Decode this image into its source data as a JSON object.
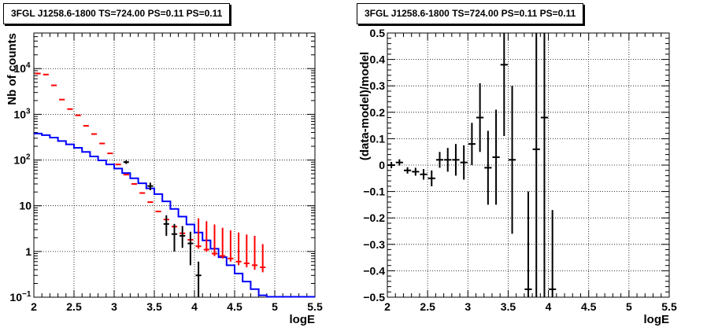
{
  "chart_data": [
    {
      "type": "step",
      "title": "3FGL J1258.6-1800 TS=724.00 PS=0.11 PS=0.11",
      "xlabel": "logE",
      "ylabel": "Nb of counts",
      "xlim": [
        2,
        5.5
      ],
      "ylim": [
        0.1,
        60000
      ],
      "ylog": true,
      "grid": true,
      "x_ticks": [
        "2",
        "2.5",
        "3",
        "3.5",
        "4",
        "4.5",
        "5",
        "5.5"
      ],
      "y_ticks": [
        {
          "value": 0.1,
          "label": "10",
          "exp": "−1"
        },
        {
          "value": 1,
          "label": "1",
          "exp": ""
        },
        {
          "value": 10,
          "label": "10",
          "exp": ""
        },
        {
          "value": 100,
          "label": "10",
          "exp": "2"
        },
        {
          "value": 1000,
          "label": "10",
          "exp": "3"
        },
        {
          "value": 10000,
          "label": "10",
          "exp": "4"
        }
      ],
      "bin_edges": [
        2.0,
        2.1,
        2.2,
        2.3,
        2.4,
        2.5,
        2.6,
        2.7,
        2.8,
        2.9,
        3.0,
        3.1,
        3.2,
        3.3,
        3.4,
        3.5,
        3.6,
        3.7,
        3.8,
        3.9,
        4.0,
        4.1,
        4.2,
        4.3,
        4.4,
        4.5,
        4.6,
        4.7,
        4.8,
        4.9,
        5.0,
        5.1,
        5.2,
        5.3,
        5.4,
        5.5
      ],
      "series": [
        {
          "color": "#0000ff",
          "kind": "histogram",
          "values": [
            380,
            350,
            310,
            260,
            220,
            185,
            150,
            120,
            98,
            80,
            65,
            52,
            40,
            31,
            24,
            18,
            12.5,
            8.5,
            5.8,
            3.9,
            2.6,
            1.75,
            1.15,
            0.75,
            0.5,
            0.33,
            0.22,
            0.15,
            0.11,
            0.1,
            0.1,
            0.1,
            0.1,
            0.1,
            0.1
          ]
        },
        {
          "color": "#ff0000",
          "kind": "points",
          "x": [
            2.05,
            2.15,
            2.25,
            2.35,
            2.45,
            2.55,
            2.65,
            2.75,
            2.85,
            2.95,
            3.05,
            3.15,
            3.25,
            3.35,
            3.45,
            3.55,
            3.65,
            3.75,
            3.85,
            3.95,
            4.05,
            4.15,
            4.25,
            4.35,
            4.45,
            4.55,
            4.65,
            4.75,
            4.85
          ],
          "y": [
            7800,
            7400,
            4300,
            2100,
            1300,
            950,
            560,
            370,
            230,
            140,
            80,
            48,
            30,
            19,
            12,
            7.5,
            5,
            3.5,
            2.5,
            1.8,
            1.3,
            1.1,
            0.9,
            0.8,
            0.7,
            0.6,
            0.55,
            0.5,
            0.45
          ],
          "err_lo": [
            0,
            0,
            0,
            0,
            0,
            0,
            0,
            0,
            0,
            0,
            0,
            0,
            0,
            0,
            0,
            0,
            0,
            0,
            0,
            0.25,
            0.15,
            0.12,
            0.11,
            0.1,
            0.1,
            0.1,
            0.1,
            0.1,
            0.1
          ],
          "err_hi": [
            0,
            0,
            0,
            0,
            0,
            0,
            0,
            0,
            0,
            0,
            0,
            0,
            0,
            0,
            0,
            0,
            0,
            0,
            0,
            0,
            4,
            3.5,
            3,
            2.5,
            2.2,
            2,
            1.8,
            1.7,
            1
          ]
        },
        {
          "color": "#000000",
          "kind": "points",
          "x": [
            3.15,
            3.45,
            3.65,
            3.75,
            3.85,
            3.95,
            4.05
          ],
          "y": [
            90,
            27,
            4,
            2.4,
            2.2,
            1.5,
            0.3
          ],
          "err_lo": [
            8,
            5,
            1.8,
            1.4,
            1,
            1,
            0.3
          ],
          "err_hi": [
            8,
            5,
            2.2,
            1.6,
            1.4,
            1.2,
            0.3
          ]
        }
      ]
    },
    {
      "type": "scatter",
      "title": "3FGL J1258.6-1800 TS=724.00 PS=0.11 PS=0.11",
      "xlabel": "logE",
      "ylabel": "(data-model)/model",
      "xlim": [
        2,
        5.5
      ],
      "ylim": [
        -0.5,
        0.5
      ],
      "grid": true,
      "x_ticks": [
        "2",
        "2.5",
        "3",
        "3.5",
        "4",
        "4.5",
        "5",
        "5.5"
      ],
      "y_ticks": [
        "−0.5",
        "−0.4",
        "−0.3",
        "−0.2",
        "−0.1",
        "0",
        "0.1",
        "0.2",
        "0.3",
        "0.4",
        "0.5"
      ],
      "series": [
        {
          "color": "#000000",
          "x": [
            2.05,
            2.15,
            2.25,
            2.35,
            2.45,
            2.55,
            2.65,
            2.75,
            2.85,
            2.95,
            3.05,
            3.15,
            3.25,
            3.35,
            3.45,
            3.55,
            3.75,
            3.85,
            3.95,
            4.05
          ],
          "y": [
            0.0,
            0.01,
            -0.02,
            -0.025,
            -0.035,
            -0.05,
            0.02,
            0.02,
            0.02,
            0.01,
            0.08,
            0.18,
            -0.01,
            0.03,
            0.38,
            0.02,
            -0.47,
            0.06,
            0.18,
            -0.47
          ],
          "err": [
            0.012,
            0.012,
            0.012,
            0.015,
            0.02,
            0.03,
            0.03,
            0.045,
            0.06,
            0.065,
            0.08,
            0.13,
            0.14,
            0.18,
            0.27,
            0.28,
            0.37,
            0.56,
            0.7,
            0.3
          ]
        }
      ]
    }
  ]
}
